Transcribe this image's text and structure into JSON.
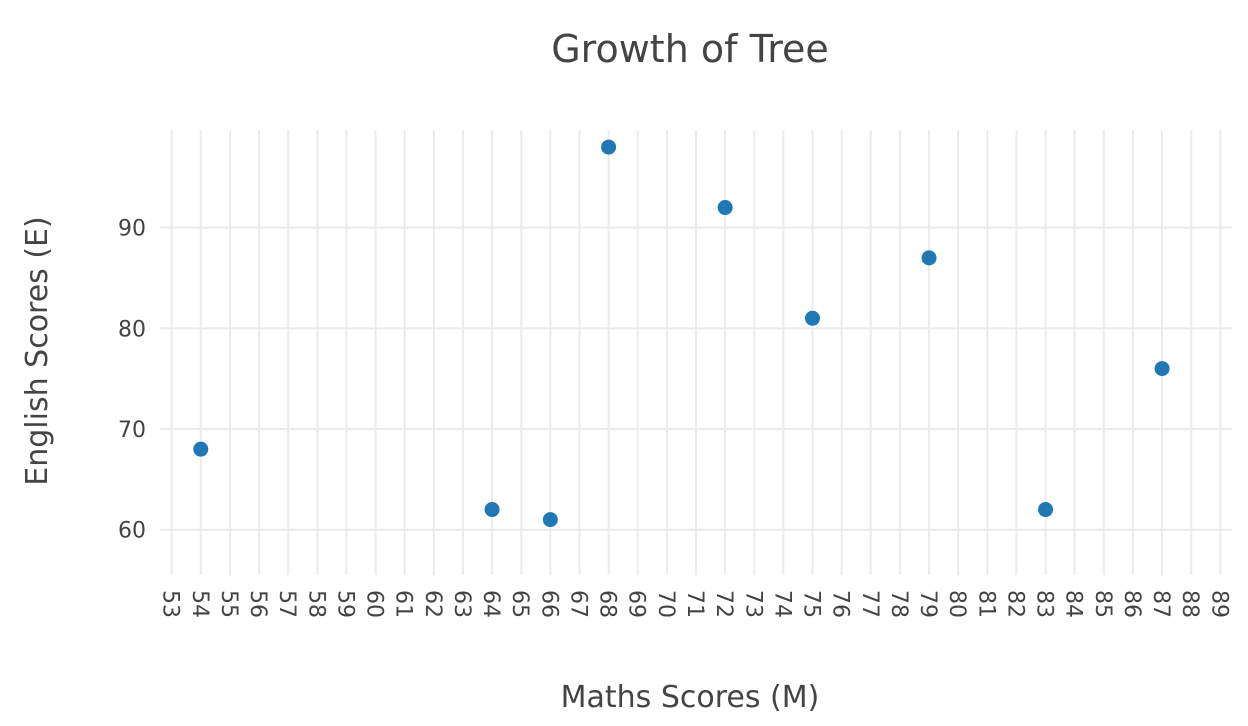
{
  "chart_data": {
    "type": "scatter",
    "title": "Growth of Tree",
    "xlabel": "Maths Scores (M)",
    "ylabel": "English Scores (E)",
    "xlim": [
      52.6,
      89.4
    ],
    "ylim": [
      55.5,
      99.7
    ],
    "x_ticks": [
      53,
      54,
      55,
      56,
      57,
      58,
      59,
      60,
      61,
      62,
      63,
      64,
      65,
      66,
      67,
      68,
      69,
      70,
      71,
      72,
      73,
      74,
      75,
      76,
      77,
      78,
      79,
      80,
      81,
      82,
      83,
      84,
      85,
      86,
      87,
      88,
      89
    ],
    "y_ticks": [
      60,
      70,
      80,
      90
    ],
    "grid": true,
    "series": [
      {
        "color": "#1f77b4",
        "points": [
          {
            "x": 54,
            "y": 68
          },
          {
            "x": 64,
            "y": 62
          },
          {
            "x": 66,
            "y": 61
          },
          {
            "x": 68,
            "y": 98
          },
          {
            "x": 72,
            "y": 92
          },
          {
            "x": 75,
            "y": 81
          },
          {
            "x": 79,
            "y": 87
          },
          {
            "x": 83,
            "y": 62
          },
          {
            "x": 87,
            "y": 76
          }
        ]
      }
    ]
  }
}
